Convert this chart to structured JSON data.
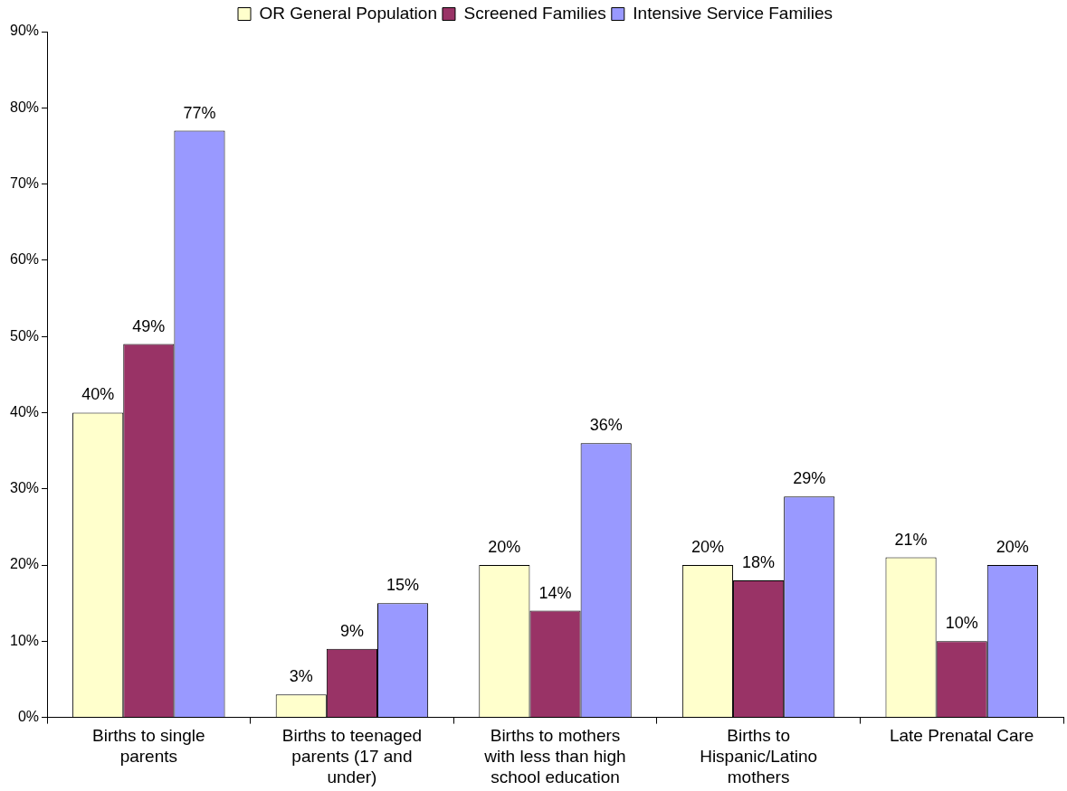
{
  "chart_data": {
    "type": "bar",
    "categories": [
      "Births to single parents",
      "Births to teenaged parents (17 and under)",
      "Births to mothers with less than high school education",
      "Births to Hispanic/Latino mothers",
      "Late Prenatal Care"
    ],
    "series": [
      {
        "name": "OR General Population",
        "color": "#ffffcc",
        "values": [
          40,
          3,
          20,
          20,
          21
        ],
        "value_labels": [
          "40%",
          "3%",
          "20%",
          "20%",
          "21%"
        ]
      },
      {
        "name": "Screened Families",
        "color": "#993366",
        "values": [
          49,
          9,
          14,
          18,
          10
        ],
        "value_labels": [
          "49%",
          "9%",
          "14%",
          "18%",
          "10%"
        ]
      },
      {
        "name": "Intensive Service Families",
        "color": "#9999ff",
        "values": [
          77,
          15,
          36,
          29,
          20
        ],
        "value_labels": [
          "77%",
          "15%",
          "36%",
          "29%",
          "20%"
        ]
      }
    ],
    "ylim": [
      0,
      90
    ],
    "yticks": [
      {
        "value": 0,
        "label": "0%"
      },
      {
        "value": 10,
        "label": "10%"
      },
      {
        "value": 20,
        "label": "20%"
      },
      {
        "value": 30,
        "label": "30%"
      },
      {
        "value": 40,
        "label": "40%"
      },
      {
        "value": 50,
        "label": "50%"
      },
      {
        "value": 60,
        "label": "60%"
      },
      {
        "value": 70,
        "label": "70%"
      },
      {
        "value": 80,
        "label": "80%"
      },
      {
        "value": 90,
        "label": "90%"
      }
    ],
    "grid": false,
    "legend": "top"
  }
}
